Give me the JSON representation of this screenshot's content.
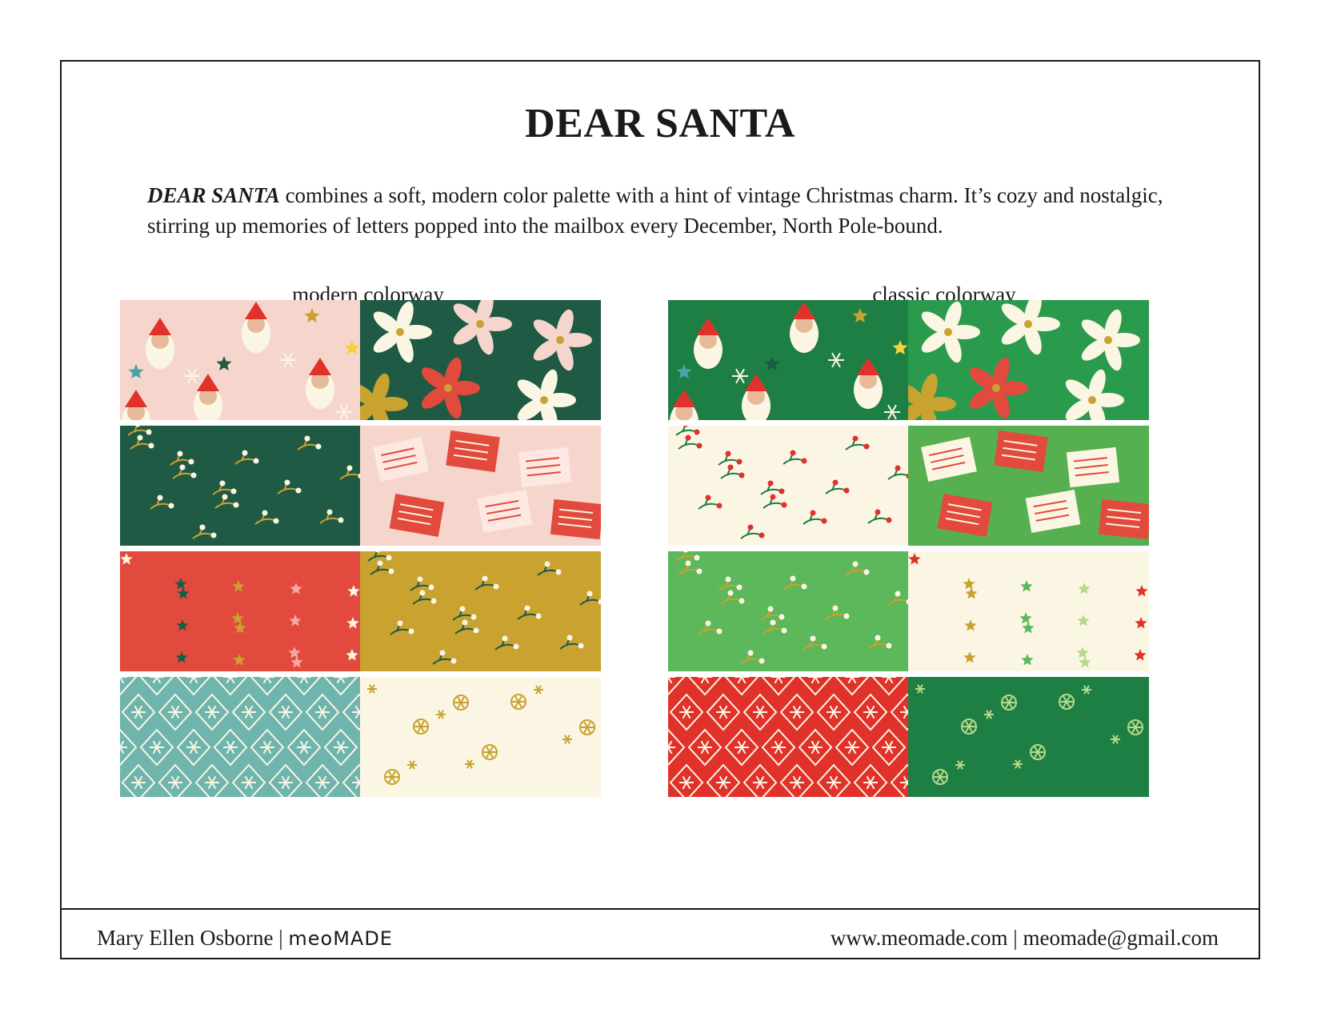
{
  "title": "DEAR SANTA",
  "description": {
    "lead": "DEAR SANTA",
    "text": " combines a soft, modern color palette with a hint of vintage Christmas charm. It’s cozy and nostalgic, stirring up memories of letters popped into the mailbox every December, North Pole-bound."
  },
  "colorways": {
    "modern": {
      "label": "modern colorway",
      "swatches": [
        {
          "pattern": "santa",
          "bg": "#f6d5cd"
        },
        {
          "pattern": "poinsettia",
          "bg": "#1f5a45"
        },
        {
          "pattern": "sprigs",
          "bg": "#1f5a45"
        },
        {
          "pattern": "letters",
          "bg": "#f6d5cd"
        },
        {
          "pattern": "stars",
          "bg": "#e24a3d"
        },
        {
          "pattern": "sprigs",
          "bg": "#c9a230"
        },
        {
          "pattern": "diamond",
          "bg": "#6fb5ad"
        },
        {
          "pattern": "wheels",
          "bg": "#fbf6e4"
        }
      ]
    },
    "classic": {
      "label": "classic colorway",
      "swatches": [
        {
          "pattern": "santa",
          "bg": "#1e7f45"
        },
        {
          "pattern": "poinsettia",
          "bg": "#2a9a4d"
        },
        {
          "pattern": "berries",
          "bg": "#fbf6e4"
        },
        {
          "pattern": "letters",
          "bg": "#56b04f"
        },
        {
          "pattern": "sprigs",
          "bg": "#5cb85a"
        },
        {
          "pattern": "stars",
          "bg": "#fbf6e4"
        },
        {
          "pattern": "diamond",
          "bg": "#e0322b"
        },
        {
          "pattern": "wheels",
          "bg": "#1e7f45"
        }
      ]
    }
  },
  "footer": {
    "name": "Mary Ellen Osborne",
    "separator": " | ",
    "brand": "meoMADE",
    "website": "www.meomade.com",
    "contact_separator": " | ",
    "email": "meomade@gmail.com"
  }
}
